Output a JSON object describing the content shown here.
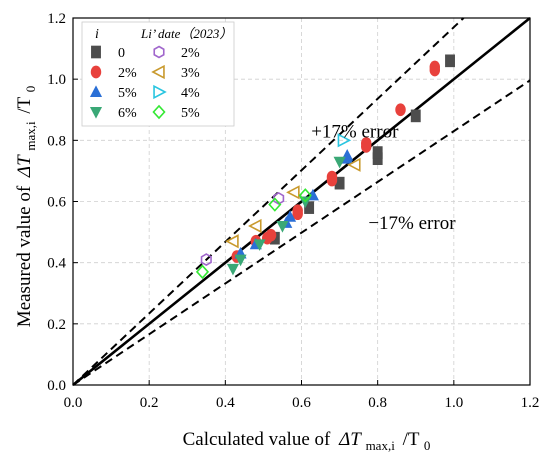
{
  "chart_data": {
    "type": "scatter",
    "title": "",
    "xlabel_prefix": "Calculated value of",
    "xlabel_math": "ΔT",
    "xlabel_sub": "max,i",
    "xlabel_suffix": "/T",
    "xlabel_sub2": "0",
    "ylabel_prefix": "Measured value of",
    "ylabel_math": "ΔT",
    "ylabel_sub": "max,i",
    "ylabel_suffix": "/T",
    "ylabel_sub2": "0",
    "xlim": [
      0.0,
      1.2
    ],
    "ylim": [
      0.0,
      1.2
    ],
    "xticks": [
      "0.0",
      "0.2",
      "0.4",
      "0.6",
      "0.8",
      "1.0",
      "1.2"
    ],
    "yticks": [
      "0.0",
      "0.2",
      "0.4",
      "0.6",
      "0.8",
      "1.0",
      "1.2"
    ],
    "grid": true,
    "legend_position": "top-left",
    "legend_header_left": "i",
    "legend_header_right": "Li’ date（2023）",
    "annotations": [
      {
        "text": "+17% error",
        "x": 0.74,
        "y": 0.81
      },
      {
        "text": "−17% error",
        "x": 0.89,
        "y": 0.51
      }
    ],
    "reference_lines": [
      {
        "name": "y=x",
        "slope": 1.0,
        "style": "solid"
      },
      {
        "name": "+17%",
        "slope": 1.17,
        "style": "dashed"
      },
      {
        "name": "-17%",
        "slope": 0.83,
        "style": "dashed"
      }
    ],
    "series": [
      {
        "name": "0",
        "marker": "square",
        "color": "#4d4d4d",
        "filled": true,
        "points": [
          [
            0.53,
            0.48
          ],
          [
            0.62,
            0.58
          ],
          [
            0.7,
            0.66
          ],
          [
            0.8,
            0.74
          ],
          [
            0.8,
            0.76
          ],
          [
            0.9,
            0.88
          ],
          [
            0.99,
            1.06
          ]
        ]
      },
      {
        "name": "2%",
        "marker": "circle",
        "color": "#e8413c",
        "filled": true,
        "points": [
          [
            0.43,
            0.42
          ],
          [
            0.48,
            0.47
          ],
          [
            0.51,
            0.48
          ],
          [
            0.52,
            0.49
          ],
          [
            0.59,
            0.56
          ],
          [
            0.59,
            0.57
          ],
          [
            0.68,
            0.67
          ],
          [
            0.68,
            0.68
          ],
          [
            0.77,
            0.78
          ],
          [
            0.77,
            0.79
          ],
          [
            0.86,
            0.9
          ],
          [
            0.95,
            1.03
          ],
          [
            0.95,
            1.04
          ]
        ]
      },
      {
        "name": "5%",
        "marker": "triangle-up",
        "color": "#2a6fd6",
        "filled": true,
        "points": [
          [
            0.44,
            0.43
          ],
          [
            0.48,
            0.46
          ],
          [
            0.56,
            0.53
          ],
          [
            0.57,
            0.55
          ],
          [
            0.63,
            0.62
          ],
          [
            0.72,
            0.74
          ],
          [
            0.72,
            0.75
          ]
        ]
      },
      {
        "name": "6%",
        "marker": "triangle-down",
        "color": "#3aa876",
        "filled": true,
        "points": [
          [
            0.42,
            0.38
          ],
          [
            0.44,
            0.41
          ],
          [
            0.49,
            0.46
          ],
          [
            0.55,
            0.52
          ],
          [
            0.61,
            0.6
          ],
          [
            0.7,
            0.73
          ]
        ]
      },
      {
        "name": "2%",
        "marker": "hexagon",
        "color": "#a066cc",
        "filled": false,
        "points": [
          [
            0.35,
            0.41
          ],
          [
            0.54,
            0.61
          ]
        ]
      },
      {
        "name": "3%",
        "marker": "triangle-left",
        "color": "#c99a2e",
        "filled": false,
        "points": [
          [
            0.42,
            0.47
          ],
          [
            0.48,
            0.52
          ],
          [
            0.58,
            0.63
          ],
          [
            0.74,
            0.72
          ]
        ]
      },
      {
        "name": "4%",
        "marker": "triangle-right",
        "color": "#29c5e0",
        "filled": false,
        "points": [
          [
            0.71,
            0.8
          ]
        ]
      },
      {
        "name": "5%",
        "marker": "diamond",
        "color": "#33e833",
        "filled": false,
        "points": [
          [
            0.34,
            0.37
          ],
          [
            0.53,
            0.59
          ],
          [
            0.61,
            0.62
          ]
        ]
      }
    ]
  }
}
